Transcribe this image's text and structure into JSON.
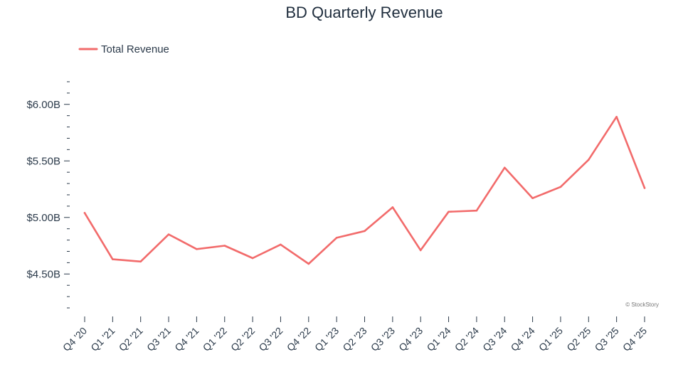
{
  "chart_data": {
    "type": "line",
    "title": "BD Quarterly Revenue",
    "xlabel": "",
    "ylabel": "",
    "categories": [
      "Q4 '20",
      "Q1 '21",
      "Q2 '21",
      "Q3 '21",
      "Q4 '21",
      "Q1 '22",
      "Q2 '22",
      "Q3 '22",
      "Q4 '22",
      "Q1 '23",
      "Q2 '23",
      "Q3 '23",
      "Q4 '23",
      "Q1 '24",
      "Q2 '24",
      "Q3 '24",
      "Q4 '24",
      "Q1 '25",
      "Q2 '25",
      "Q3 '25",
      "Q4 '25"
    ],
    "series": [
      {
        "name": "Total Revenue",
        "color": "#f26b6b",
        "values": [
          5.04,
          4.63,
          4.61,
          4.85,
          4.72,
          4.75,
          4.64,
          4.76,
          4.59,
          4.82,
          4.88,
          5.09,
          4.71,
          5.05,
          5.06,
          5.44,
          5.17,
          5.27,
          5.51,
          5.89,
          5.26
        ]
      }
    ],
    "ylim": [
      4.2,
      6.25
    ],
    "yticks": [
      4.5,
      5.0,
      5.5,
      6.0
    ],
    "ytick_labels": [
      "$4.50B",
      "$5.00B",
      "$5.50B",
      "$6.00B"
    ],
    "minor_tick_step": 0.1,
    "grid": false,
    "legend_position": "top-left",
    "credit": "© StockStory"
  }
}
